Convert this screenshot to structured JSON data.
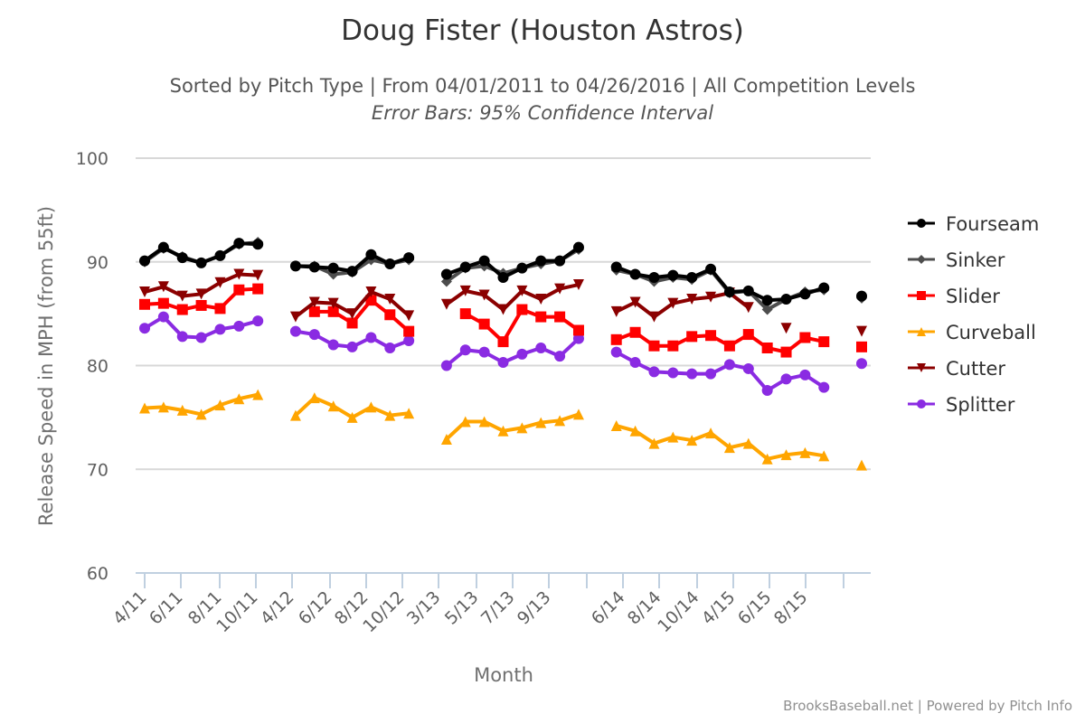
{
  "chart_data": {
    "type": "line",
    "title": "Doug Fister (Houston Astros)",
    "subtitle": "Sorted by Pitch Type | From 04/01/2011 to 04/26/2016 | All Competition Levels",
    "subtitle2": "Error Bars: 95% Confidence Interval",
    "xlabel": "Month",
    "ylabel": "Release Speed in MPH (from 55ft)",
    "ylim": [
      60,
      100
    ],
    "yticks": [
      60,
      70,
      80,
      90,
      100
    ],
    "grid": true,
    "legend_position": "right",
    "credits": "BrooksBaseball.net | Powered by Pitch Info",
    "categories": [
      "4/11",
      "5/11",
      "6/11",
      "7/11",
      "8/11",
      "9/11",
      "10/11",
      "",
      "4/12",
      "5/12",
      "6/12",
      "7/12",
      "8/12",
      "9/12",
      "10/12",
      "",
      "3/13",
      "4/13",
      "5/13",
      "6/13",
      "7/13",
      "8/13",
      "9/13",
      "10/13",
      "",
      "5/14",
      "6/14",
      "7/14",
      "8/14",
      "9/14",
      "10/14",
      "4/15",
      "5/15",
      "6/15",
      "7/15",
      "8/15",
      "9/15",
      "",
      "4/16"
    ],
    "tick_labels": [
      "4/11",
      "6/11",
      "8/11",
      "10/11",
      "4/12",
      "6/12",
      "8/12",
      "10/12",
      "3/13",
      "5/13",
      "7/13",
      "9/13",
      "",
      "6/14",
      "8/14",
      "10/14",
      "4/15",
      "6/15",
      "8/15",
      ""
    ],
    "series": [
      {
        "name": "Fourseam",
        "color": "#000000",
        "marker": "circle",
        "values": [
          90.1,
          91.4,
          90.4,
          89.9,
          90.6,
          91.8,
          91.7,
          null,
          89.6,
          89.5,
          89.4,
          89.1,
          90.7,
          89.8,
          90.4,
          null,
          88.8,
          89.5,
          90.1,
          88.5,
          89.4,
          90.1,
          90.1,
          91.4,
          null,
          89.5,
          88.8,
          88.5,
          88.7,
          88.5,
          89.3,
          87.1,
          87.2,
          86.3,
          86.4,
          86.9,
          87.5,
          null,
          86.7
        ]
      },
      {
        "name": "Sinker",
        "color": "#4d4d4d",
        "marker": "diamond",
        "values": [
          90.0,
          91.3,
          90.5,
          89.9,
          90.6,
          91.7,
          91.9,
          null,
          89.6,
          89.6,
          88.8,
          89.0,
          90.2,
          89.8,
          90.2,
          null,
          88.1,
          89.4,
          89.6,
          88.9,
          89.4,
          89.8,
          90.1,
          91.2,
          null,
          89.2,
          88.8,
          88.1,
          88.5,
          88.3,
          89.2,
          87.0,
          87.2,
          85.4,
          86.4,
          87.1,
          87.3,
          null,
          86.5
        ]
      },
      {
        "name": "Slider",
        "color": "#ff0000",
        "marker": "square",
        "values": [
          85.9,
          86.0,
          85.4,
          85.8,
          85.5,
          87.3,
          87.4,
          null,
          null,
          85.2,
          85.2,
          84.1,
          86.3,
          84.9,
          83.3,
          null,
          null,
          85.0,
          84.0,
          82.3,
          85.4,
          84.7,
          84.7,
          83.4,
          null,
          82.5,
          83.2,
          81.9,
          81.9,
          82.8,
          82.9,
          81.9,
          83.0,
          81.7,
          81.3,
          82.7,
          82.3,
          null,
          81.8
        ]
      },
      {
        "name": "Curveball",
        "color": "#ffa500",
        "marker": "triangle",
        "values": [
          75.9,
          76.0,
          75.7,
          75.3,
          76.2,
          76.8,
          77.2,
          null,
          75.2,
          76.9,
          76.1,
          75.0,
          76.0,
          75.2,
          75.4,
          null,
          72.9,
          74.6,
          74.6,
          73.7,
          74.0,
          74.5,
          74.7,
          75.3,
          null,
          74.2,
          73.7,
          72.5,
          73.1,
          72.8,
          73.5,
          72.1,
          72.5,
          71.0,
          71.4,
          71.6,
          71.3,
          null,
          70.4
        ]
      },
      {
        "name": "Cutter",
        "color": "#8b0000",
        "marker": "triangle-down",
        "values": [
          87.1,
          87.6,
          86.7,
          86.9,
          88.0,
          88.8,
          88.7,
          null,
          84.7,
          86.1,
          86.0,
          85.0,
          87.1,
          86.4,
          84.8,
          null,
          85.9,
          87.2,
          86.8,
          85.4,
          87.2,
          86.4,
          87.4,
          87.8,
          null,
          85.2,
          86.1,
          84.7,
          86.0,
          86.4,
          86.6,
          87.0,
          85.6,
          null,
          83.6,
          null,
          null,
          null,
          83.3
        ]
      },
      {
        "name": "Splitter",
        "color": "#8a2be2",
        "marker": "circle",
        "values": [
          83.6,
          84.7,
          82.8,
          82.7,
          83.5,
          83.8,
          84.3,
          null,
          83.3,
          83.0,
          82.0,
          81.8,
          82.7,
          81.7,
          82.4,
          null,
          80.0,
          81.5,
          81.3,
          80.3,
          81.1,
          81.7,
          80.9,
          82.6,
          null,
          81.3,
          80.3,
          79.4,
          79.3,
          79.2,
          79.2,
          80.1,
          79.7,
          77.6,
          78.7,
          79.1,
          77.9,
          null,
          80.2
        ]
      }
    ]
  }
}
